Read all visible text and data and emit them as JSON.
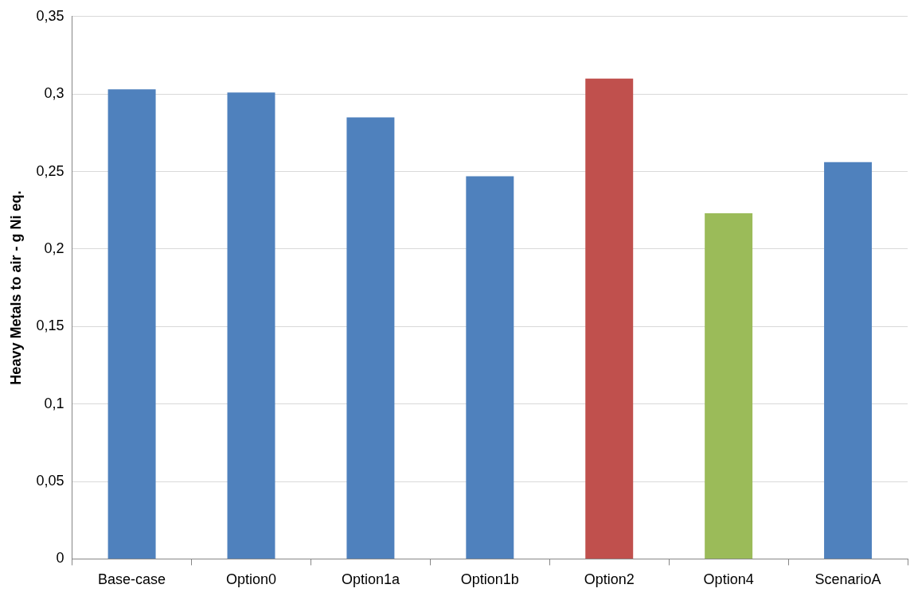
{
  "chart_data": {
    "type": "bar",
    "ylabel": "Heavy Metals to air - g Ni eq.",
    "categories": [
      "Base-case",
      "Option0",
      "Option1a",
      "Option1b",
      "Option2",
      "Option4",
      "ScenarioA"
    ],
    "values": [
      0.303,
      0.301,
      0.285,
      0.247,
      0.31,
      0.223,
      0.256
    ],
    "colors": [
      "#4f81bd",
      "#4f81bd",
      "#4f81bd",
      "#4f81bd",
      "#c0504d",
      "#9bbb59",
      "#4f81bd"
    ],
    "ylim": [
      0,
      0.35
    ],
    "yticks": [
      0,
      {
        "value": 0.05,
        "label": "0,05"
      },
      {
        "value": 0.1,
        "label": "0,1"
      },
      {
        "value": 0.15,
        "label": "0,15"
      },
      {
        "value": 0.2,
        "label": "0,2"
      },
      {
        "value": 0.25,
        "label": "0,25"
      },
      {
        "value": 0.3,
        "label": "0,3"
      },
      {
        "value": 0.35,
        "label": "0,35"
      }
    ],
    "grid": "y",
    "legend": false
  }
}
